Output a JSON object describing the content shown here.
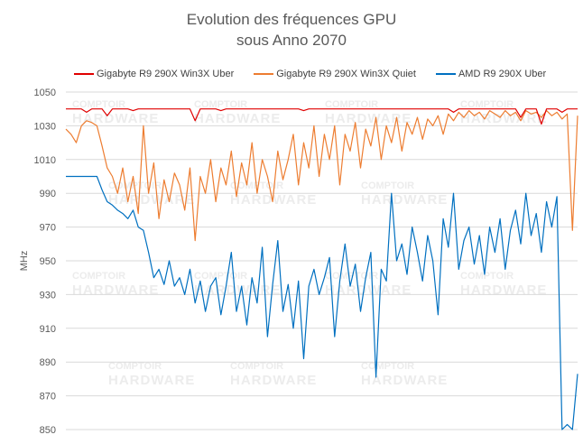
{
  "watermark": {
    "brand": "le COMPTOIR du HARDWARE",
    "line1": "COMPTOIR",
    "line2": "HARDWARE"
  },
  "chart_data": {
    "type": "line",
    "title": [
      "Evolution des fréquences GPU",
      "sous Anno 2070"
    ],
    "xlabel": "",
    "ylabel": "MHz",
    "ylim": [
      850,
      1050
    ],
    "yticks": [
      1050,
      1030,
      1010,
      990,
      970,
      950,
      930,
      910,
      890,
      870,
      850
    ],
    "grid": true,
    "legend": "top",
    "series": [
      {
        "name": "Gigabyte R9 290X Win3X Uber",
        "color": "#e00000",
        "values": [
          1040,
          1040,
          1040,
          1040,
          1038,
          1040,
          1040,
          1040,
          1036,
          1040,
          1040,
          1040,
          1040,
          1039,
          1040,
          1040,
          1040,
          1040,
          1040,
          1040,
          1040,
          1040,
          1040,
          1040,
          1040,
          1033,
          1040,
          1040,
          1040,
          1040,
          1039,
          1040,
          1040,
          1040,
          1040,
          1040,
          1040,
          1040,
          1040,
          1040,
          1040,
          1040,
          1040,
          1040,
          1040,
          1040,
          1039,
          1040,
          1040,
          1040,
          1040,
          1040,
          1040,
          1040,
          1040,
          1040,
          1040,
          1040,
          1040,
          1040,
          1040,
          1040,
          1040,
          1040,
          1040,
          1040,
          1040,
          1040,
          1040,
          1040,
          1040,
          1040,
          1040,
          1040,
          1040,
          1038,
          1040,
          1040,
          1040,
          1040,
          1040,
          1040,
          1040,
          1040,
          1040,
          1040,
          1040,
          1040,
          1035,
          1040,
          1040,
          1040,
          1031,
          1040,
          1040,
          1040,
          1038,
          1040,
          1040,
          1040
        ]
      },
      {
        "name": "Gigabyte R9 290X Win3X Quiet",
        "color": "#ed7d31",
        "values": [
          1028,
          1025,
          1020,
          1030,
          1033,
          1032,
          1030,
          1018,
          1005,
          1000,
          990,
          1005,
          985,
          1000,
          978,
          1030,
          990,
          1008,
          975,
          998,
          985,
          1002,
          995,
          980,
          1005,
          962,
          1000,
          990,
          1010,
          985,
          1005,
          995,
          1015,
          988,
          1008,
          995,
          1020,
          990,
          1010,
          1000,
          985,
          1015,
          998,
          1010,
          1025,
          995,
          1020,
          1005,
          1030,
          1000,
          1025,
          1010,
          1030,
          995,
          1025,
          1015,
          1032,
          1005,
          1028,
          1018,
          1035,
          1010,
          1030,
          1020,
          1035,
          1015,
          1032,
          1025,
          1035,
          1022,
          1034,
          1030,
          1036,
          1025,
          1037,
          1033,
          1038,
          1035,
          1039,
          1036,
          1038,
          1034,
          1039,
          1037,
          1035,
          1039,
          1036,
          1038,
          1033,
          1039,
          1037,
          1038,
          1035,
          1039,
          1036,
          1038,
          1034,
          1037,
          968,
          1036
        ]
      },
      {
        "name": "AMD R9 290X Uber",
        "color": "#0070c0",
        "values": [
          1000,
          1000,
          1000,
          1000,
          1000,
          1000,
          1000,
          992,
          985,
          983,
          980,
          978,
          975,
          980,
          970,
          968,
          955,
          940,
          945,
          936,
          950,
          935,
          940,
          930,
          945,
          925,
          938,
          920,
          935,
          940,
          918,
          935,
          955,
          920,
          935,
          912,
          940,
          925,
          958,
          905,
          936,
          962,
          920,
          936,
          910,
          938,
          892,
          935,
          945,
          930,
          940,
          952,
          905,
          938,
          960,
          935,
          948,
          920,
          940,
          955,
          881,
          945,
          938,
          990,
          950,
          960,
          942,
          970,
          955,
          938,
          965,
          950,
          918,
          975,
          958,
          990,
          945,
          962,
          970,
          948,
          965,
          942,
          970,
          955,
          975,
          945,
          968,
          980,
          960,
          990,
          965,
          978,
          955,
          985,
          970,
          988,
          850,
          853,
          850,
          883
        ]
      }
    ]
  }
}
